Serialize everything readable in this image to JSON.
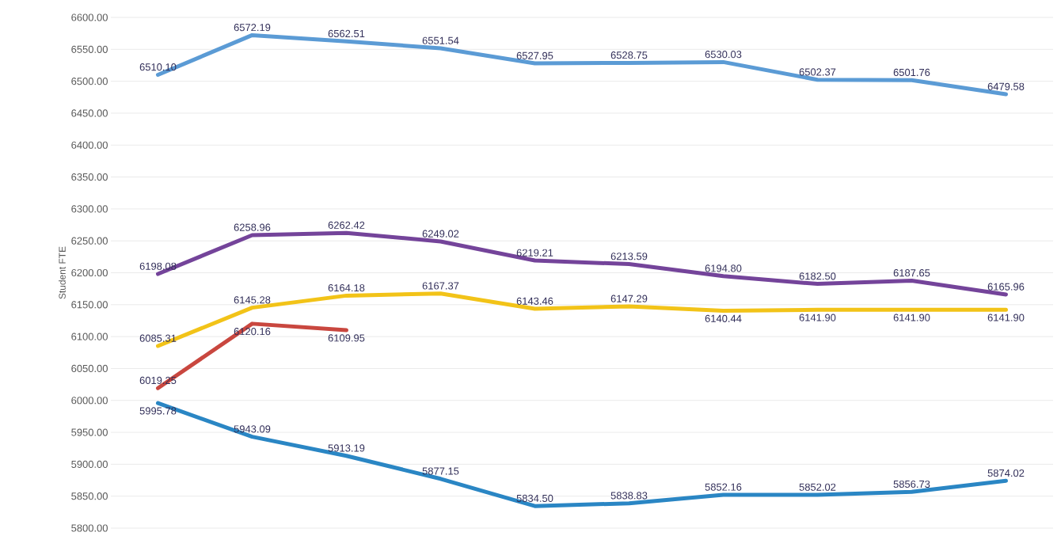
{
  "chart_data": {
    "type": "line",
    "ylabel": "Student FTE",
    "categories": [
      null,
      null,
      null,
      null,
      null,
      null,
      null,
      null,
      null,
      null
    ],
    "series": [
      {
        "color": "#5b9bd5",
        "values": [
          6510.1,
          6572.19,
          6562.51,
          6551.54,
          6527.95,
          6528.75,
          6530.03,
          6502.37,
          6501.76,
          6479.58
        ],
        "value_labels": [
          "6510.10",
          "6572.19",
          "6562.51",
          "6551.54",
          "6527.95",
          "6528.75",
          "6530.03",
          "6502.37",
          "6501.76",
          "6479.58"
        ]
      },
      {
        "color": "#74449a",
        "values": [
          6198.08,
          6258.96,
          6262.42,
          6249.02,
          6219.21,
          6213.59,
          6194.8,
          6182.5,
          6187.65,
          6165.96
        ],
        "value_labels": [
          "6198.08",
          "6258.96",
          "6262.42",
          "6249.02",
          "6219.21",
          "6213.59",
          "6194.80",
          "6182.50",
          "6187.65",
          "6165.96"
        ]
      },
      {
        "color": "#f2c318",
        "values": [
          6085.31,
          6145.28,
          6164.18,
          6167.37,
          6143.46,
          6147.29,
          6140.44,
          6141.9,
          6141.9,
          6141.9
        ],
        "value_labels": [
          "6085.31",
          "6145.28",
          "6164.18",
          "6167.37",
          "6143.46",
          "6147.29",
          "6140.44",
          "6141.90",
          "6141.90",
          "6141.90"
        ]
      },
      {
        "color": "#c9473f",
        "values": [
          6019.25,
          6120.16,
          6109.95,
          null,
          null,
          null,
          null,
          null,
          null,
          null
        ],
        "value_labels": [
          "6019.25",
          "6120.16",
          "6109.95",
          null,
          null,
          null,
          null,
          null,
          null,
          null
        ]
      },
      {
        "color": "#2a86c4",
        "values": [
          5995.78,
          5943.09,
          5913.19,
          5877.15,
          5834.5,
          5838.83,
          5852.16,
          5852.02,
          5856.73,
          5874.02
        ],
        "value_labels": [
          "5995.78",
          "5943.09",
          "5913.19",
          "5877.15",
          "5834.50",
          "5838.83",
          "5852.16",
          "5852.02",
          "5856.73",
          "5874.02"
        ]
      }
    ],
    "ylim": [
      5800,
      6600
    ],
    "yticks": [
      {
        "value": 5800,
        "label": "5800.00"
      },
      {
        "value": 5850,
        "label": "5850.00"
      },
      {
        "value": 5900,
        "label": "5900.00"
      },
      {
        "value": 5950,
        "label": "5950.00"
      },
      {
        "value": 6000,
        "label": "6000.00"
      },
      {
        "value": 6050,
        "label": "6050.00"
      },
      {
        "value": 6100,
        "label": "6100.00"
      },
      {
        "value": 6150,
        "label": "6150.00"
      },
      {
        "value": 6200,
        "label": "6200.00"
      },
      {
        "value": 6250,
        "label": "6250.00"
      },
      {
        "value": 6300,
        "label": "6300.00"
      },
      {
        "value": 6350,
        "label": "6350.00"
      },
      {
        "value": 6400,
        "label": "6400.00"
      },
      {
        "value": 6450,
        "label": "6450.00"
      },
      {
        "value": 6500,
        "label": "6500.00"
      },
      {
        "value": 6550,
        "label": "6550.00"
      },
      {
        "value": 6600,
        "label": "6600.00"
      }
    ],
    "grid": "y",
    "marker": "none",
    "line_style": "solid"
  }
}
